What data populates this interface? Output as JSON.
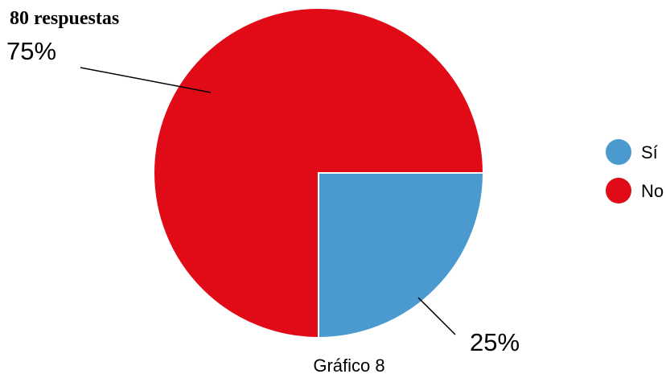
{
  "heading": "80 respuestas",
  "caption": "Gráfico 8",
  "chart_data": {
    "type": "pie",
    "slices": [
      {
        "label": "Sí",
        "value": 25,
        "percent_label": "25%",
        "color": "#4a9ad0"
      },
      {
        "label": "No",
        "value": 75,
        "percent_label": "75%",
        "color": "#e10b17"
      }
    ],
    "legend_position": "right"
  }
}
